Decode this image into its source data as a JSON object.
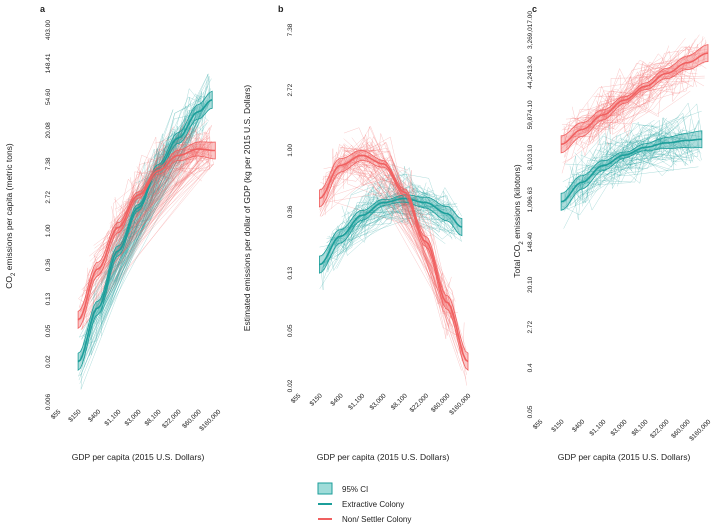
{
  "figure": {
    "xlabel": "GDP per capita (2015 U.S. Dollars)",
    "legend": [
      {
        "key": "ci",
        "label": "95% CI"
      },
      {
        "key": "extractive",
        "label": "Extractive Colony"
      },
      {
        "key": "settler",
        "label": "Non/ Settler Colony"
      }
    ],
    "colors": {
      "extractive": "#1b9e9a",
      "settler": "#f06060",
      "ci_fill": "#9fdcd9"
    }
  },
  "chart_data": [
    {
      "type": "line",
      "panel": "a",
      "xlabel": "GDP per capita (2015 U.S. Dollars)",
      "ylabel": "CO2 emissions per capita (metric tons)",
      "ylabel_main": "CO",
      "ylabel_sub": "2",
      "ylabel_rest": " emissions per capita (metric tons)",
      "x_scale": "log",
      "y_scale": "log",
      "x_ticks": [
        "$55",
        "$150",
        "$400",
        "$1,100",
        "$3,000",
        "$8,100",
        "$22,000",
        "$60,000",
        "$160,000"
      ],
      "y_ticks": [
        "0.006",
        "0.02",
        "0.05",
        "0.13",
        "0.36",
        "1.00",
        "2.72",
        "7.38",
        "20.08",
        "54.60",
        "148.41",
        "403.00"
      ],
      "grid": false,
      "series": [
        {
          "name": "Extractive Colony",
          "color": "#1b9e9a",
          "x": [
            150,
            400,
            1100,
            3000,
            8100,
            22000,
            60000,
            120000
          ],
          "y": [
            0.02,
            0.1,
            0.55,
            2.0,
            6.5,
            16,
            35,
            50
          ]
        },
        {
          "name": "Non/ Settler Colony",
          "color": "#f06060",
          "x": [
            150,
            400,
            1100,
            3000,
            8100,
            22000,
            60000,
            140000
          ],
          "y": [
            0.07,
            0.32,
            1.1,
            2.9,
            6.0,
            9.5,
            11.5,
            11.0
          ]
        }
      ]
    },
    {
      "type": "line",
      "panel": "b",
      "xlabel": "GDP per capita (2015 U.S. Dollars)",
      "ylabel": "Estimated emissions per dollar of GDP (kg per 2015 U.S. Dollars)",
      "x_scale": "log",
      "y_scale": "log",
      "x_ticks": [
        "$55",
        "$150",
        "$400",
        "$1,100",
        "$3,000",
        "$8,100",
        "$22,000",
        "$60,000",
        "$160,000"
      ],
      "y_ticks": [
        "0.02",
        "0.05",
        "0.13",
        "0.36",
        "1.00",
        "2.72",
        "7.38"
      ],
      "grid": false,
      "series": [
        {
          "name": "Extractive Colony",
          "color": "#1b9e9a",
          "x": [
            150,
            400,
            1100,
            3000,
            8100,
            22000,
            60000,
            120000
          ],
          "y": [
            0.15,
            0.24,
            0.34,
            0.42,
            0.45,
            0.42,
            0.35,
            0.28
          ]
        },
        {
          "name": "Non/ Settler Colony",
          "color": "#f06060",
          "x": [
            150,
            400,
            1100,
            3000,
            8100,
            22000,
            60000,
            160000
          ],
          "y": [
            0.45,
            0.78,
            0.92,
            0.8,
            0.5,
            0.22,
            0.08,
            0.03
          ]
        }
      ]
    },
    {
      "type": "line",
      "panel": "c",
      "xlabel": "GDP per capita (2015 U.S. Dollars)",
      "ylabel": "Total CO2 emissions (kilotons)",
      "ylabel_main": "Total CO",
      "ylabel_sub": "2",
      "ylabel_rest": " emissions (kilotons)",
      "x_scale": "log",
      "y_scale": "log",
      "x_ticks": [
        "$55",
        "$150",
        "$400",
        "$1,100",
        "$3,000",
        "$8,100",
        "$22,000",
        "$60,000",
        "$160,000"
      ],
      "y_ticks": [
        "0.05",
        "0.4",
        "2.72",
        "20.10",
        "148.40",
        "1,096.63",
        "8,103.10",
        "59,874.10",
        "44,2413.40",
        "3,269,017.00"
      ],
      "grid": false,
      "series": [
        {
          "name": "Extractive Colony",
          "color": "#1b9e9a",
          "x": [
            150,
            400,
            1100,
            3000,
            8100,
            22000,
            60000,
            120000
          ],
          "y": [
            1000,
            2500,
            5500,
            9000,
            13000,
            16000,
            18000,
            19000
          ]
        },
        {
          "name": "Non/ Settler Colony",
          "color": "#f06060",
          "x": [
            150,
            400,
            1100,
            3000,
            8100,
            22000,
            60000,
            160000
          ],
          "y": [
            15000,
            30000,
            60000,
            120000,
            230000,
            420000,
            700000,
            1100000
          ]
        }
      ]
    }
  ]
}
